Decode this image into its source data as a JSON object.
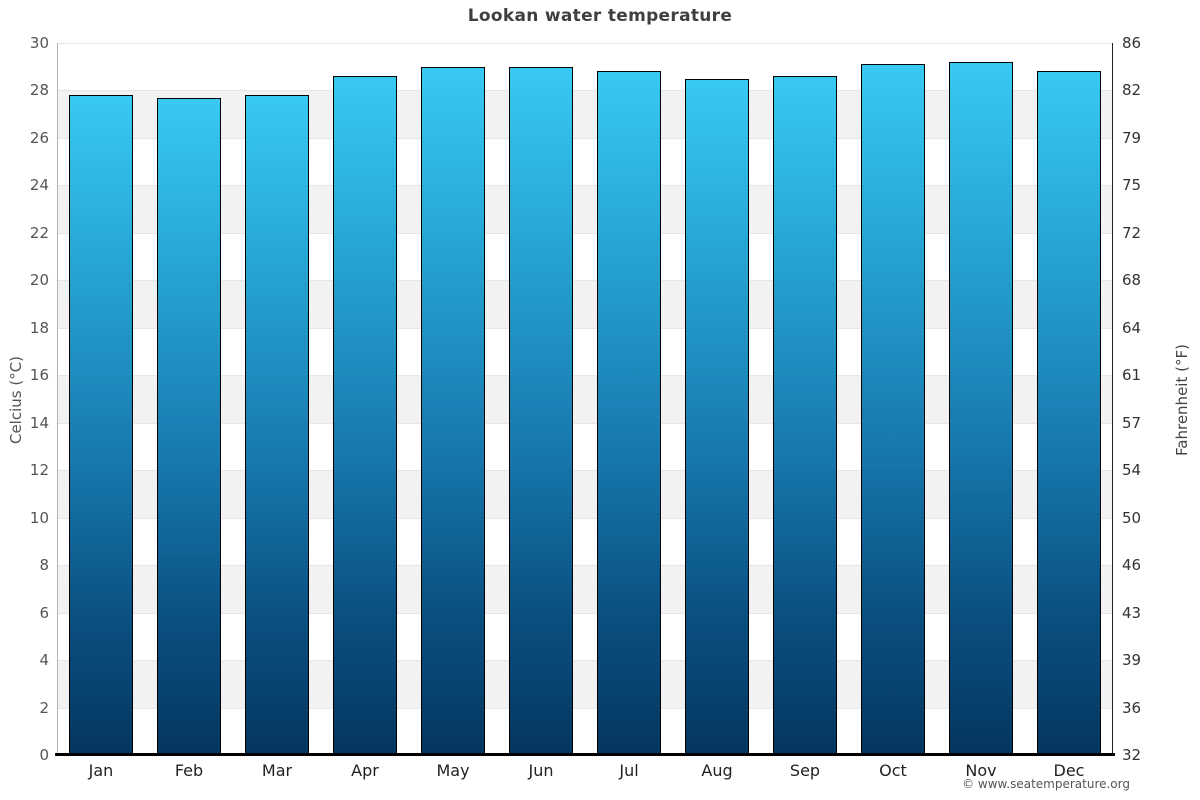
{
  "header": {
    "title": "Lookan water temperature"
  },
  "footer": {
    "attribution": "© www.seatemperature.org"
  },
  "chart_data": {
    "type": "bar",
    "title": "Lookan water temperature",
    "categories": [
      "Jan",
      "Feb",
      "Mar",
      "Apr",
      "May",
      "Jun",
      "Jul",
      "Aug",
      "Sep",
      "Oct",
      "Nov",
      "Dec"
    ],
    "series": [
      {
        "name": "Water temperature",
        "unit": "°C",
        "values": [
          27.8,
          27.7,
          27.8,
          28.6,
          29.0,
          29.0,
          28.8,
          28.5,
          28.6,
          29.1,
          29.2,
          28.8
        ]
      }
    ],
    "axis_left": {
      "label": "Celcius (°C)",
      "range": [
        0,
        30
      ],
      "tick_step": 2,
      "ticks": [
        30,
        28,
        26,
        24,
        22,
        20,
        18,
        16,
        14,
        12,
        10,
        8,
        6,
        4,
        2,
        0
      ]
    },
    "axis_right": {
      "label": "Fahrenheit (°F)",
      "ticks": [
        "86",
        "82",
        "79",
        "75",
        "72",
        "68",
        "64",
        "61",
        "57",
        "54",
        "50",
        "46",
        "43",
        "39",
        "36",
        "32"
      ]
    },
    "layout_hints": {
      "grid": "horizontal striped bands every 2°C, alternating white/gray from top",
      "legend_position": "none",
      "bar_outline": true
    },
    "colors": {
      "bar_gradient_top": "#38c9f3",
      "bar_gradient_mid": "#1779ae",
      "bar_gradient_bottom": "#05365f",
      "bar_border": "#000000",
      "stripe_gray": "#f2f2f2",
      "background": "#ffffff",
      "gridline": "#e6e6e6",
      "title_text": "#3f3f3f",
      "tick_text": "#555555"
    }
  }
}
